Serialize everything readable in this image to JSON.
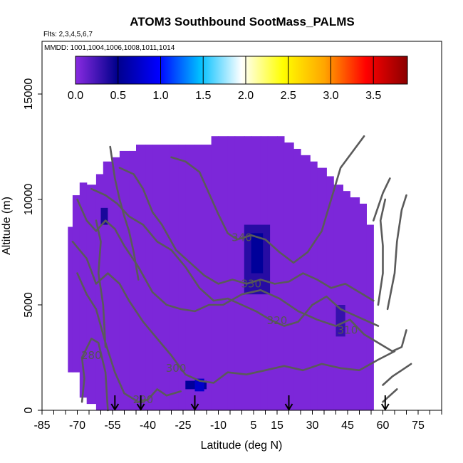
{
  "chart_data": {
    "type": "heatmap",
    "title": "ATOM3 Southbound SootMass_PALMS",
    "subtitle_flights": "Flts: 2,3,4,5,6,7",
    "subtitle_dates": "MMDD: 1001,1004,1006,1008,1011,1014",
    "xlabel": "Latitude (deg N)",
    "ylabel": "Altitude (m)",
    "xlim": [
      -85,
      85
    ],
    "ylim": [
      0,
      17500
    ],
    "x_ticks": [
      -85,
      -70,
      -55,
      -40,
      -25,
      -10,
      5,
      15,
      30,
      45,
      60,
      75
    ],
    "y_ticks": [
      0,
      5000,
      10000,
      15000
    ],
    "colorbar": {
      "min": 0.0,
      "max": 3.9,
      "ticks": [
        "0.0",
        "0.5",
        "1.0",
        "1.5",
        "2.0",
        "2.5",
        "3.0",
        "3.5"
      ],
      "colors": [
        "#8a2be2",
        "#00008b",
        "#0000ff",
        "#00bfff",
        "#ffffff",
        "#ffff00",
        "#ffa500",
        "#ff0000",
        "#8b0000"
      ]
    },
    "background_value": 0.05,
    "coverage": [
      [
        -70,
        400,
        2000
      ],
      [
        -69,
        450,
        2900
      ],
      [
        -68,
        500,
        2800
      ],
      [
        -67,
        550,
        3000
      ],
      [
        -66,
        600,
        1000
      ],
      [
        -65,
        650,
        1100
      ],
      [
        -64,
        700,
        3000
      ],
      [
        -63,
        800,
        3000
      ],
      [
        -62,
        900,
        10000
      ],
      [
        -61,
        1000,
        9000
      ],
      [
        -60,
        1100,
        9000
      ],
      [
        -59,
        1200,
        8000
      ],
      [
        -58,
        1300,
        7000
      ],
      [
        -57,
        1400,
        5000
      ],
      [
        -56,
        1500,
        4000
      ],
      [
        -55,
        1600,
        3000
      ],
      [
        -54,
        1700,
        2000
      ],
      [
        -53,
        1900,
        1800
      ],
      [
        -52,
        2100,
        1600
      ],
      [
        -51,
        2300,
        1400
      ],
      [
        -50,
        2500,
        1300
      ],
      [
        -49,
        2700,
        1200
      ],
      [
        -48,
        3000,
        1100
      ],
      [
        -47,
        3300,
        1000
      ],
      [
        -46,
        3600,
        900
      ],
      [
        -45,
        3900,
        800
      ],
      [
        -44,
        4200,
        700
      ],
      [
        -43,
        4500,
        600
      ],
      [
        -42,
        4800,
        500
      ],
      [
        -41,
        5100,
        400
      ],
      [
        -40,
        5400,
        300
      ]
    ],
    "hotspots": [
      {
        "lat_range": [
          -60,
          -57
        ],
        "alt_range": [
          8800,
          9600
        ],
        "value": 0.4
      },
      {
        "lat_range": [
          -24,
          -15
        ],
        "alt_range": [
          1000,
          1400
        ],
        "value": 0.55
      },
      {
        "lat_range": [
          -20,
          -16
        ],
        "alt_range": [
          900,
          1500
        ],
        "value": 0.75
      },
      {
        "lat_range": [
          1,
          12
        ],
        "alt_range": [
          5500,
          8800
        ],
        "value": 0.35
      },
      {
        "lat_range": [
          4,
          9
        ],
        "alt_range": [
          6500,
          8400
        ],
        "value": 0.55
      },
      {
        "lat_range": [
          40,
          44
        ],
        "alt_range": [
          3500,
          5000
        ],
        "value": 0.3
      }
    ],
    "contours": [
      {
        "label": "280",
        "label_at": [
          -64,
          2600
        ],
        "points": [
          [
            -68,
            400
          ],
          [
            -67,
            1500
          ],
          [
            -68,
            2500
          ],
          [
            -64,
            3400
          ],
          [
            -61,
            3200
          ],
          [
            -58,
            1800
          ],
          [
            -57,
            0
          ]
        ]
      },
      {
        "label": "290",
        "label_at": [
          -42,
          500
        ],
        "points": [
          [
            -70,
            6500
          ],
          [
            -66,
            5500
          ],
          [
            -62,
            4800
          ],
          [
            -58,
            3200
          ],
          [
            -54,
            1800
          ],
          [
            -50,
            800
          ],
          [
            -44,
            400
          ],
          [
            -40,
            500
          ],
          [
            -36,
            1000
          ],
          [
            -32,
            700
          ],
          [
            -26,
            900
          ]
        ]
      },
      {
        "label": "300",
        "label_at": [
          -28,
          2000
        ],
        "points": [
          [
            -72,
            8000
          ],
          [
            -66,
            7200
          ],
          [
            -62,
            6000
          ],
          [
            -57,
            6500
          ],
          [
            -52,
            6000
          ],
          [
            -48,
            5200
          ],
          [
            -42,
            4200
          ],
          [
            -36,
            3400
          ],
          [
            -30,
            2600
          ],
          [
            -24,
            1700
          ],
          [
            -18,
            1400
          ],
          [
            -12,
            1300
          ],
          [
            -6,
            1800
          ],
          [
            2,
            1700
          ],
          [
            10,
            1900
          ],
          [
            18,
            2100
          ],
          [
            26,
            1900
          ],
          [
            34,
            2200
          ],
          [
            42,
            2000
          ],
          [
            50,
            1900
          ],
          [
            58,
            2400
          ],
          [
            65,
            2800
          ]
        ]
      },
      {
        "label": "310",
        "label_at": [
          45,
          3800
        ],
        "points": [
          [
            -70,
            10000
          ],
          [
            -66,
            9000
          ],
          [
            -62,
            8500
          ],
          [
            -58,
            9000
          ],
          [
            -54,
            8600
          ],
          [
            -50,
            7800
          ],
          [
            -44,
            6800
          ],
          [
            -38,
            5600
          ],
          [
            -32,
            5000
          ],
          [
            -26,
            4800
          ],
          [
            -20,
            4700
          ],
          [
            -14,
            5000
          ],
          [
            -8,
            5000
          ],
          [
            0,
            5500
          ],
          [
            8,
            5700
          ],
          [
            16,
            5300
          ],
          [
            24,
            4700
          ],
          [
            32,
            4300
          ],
          [
            40,
            4000
          ],
          [
            46,
            4300
          ],
          [
            52,
            3600
          ],
          [
            58,
            3200
          ],
          [
            64,
            2800
          ],
          [
            68,
            3000
          ],
          [
            70,
            3800
          ]
        ]
      },
      {
        "label": "320",
        "label_at": [
          15,
          4250
        ],
        "points": [
          [
            -64,
            10500
          ],
          [
            -58,
            10200
          ],
          [
            -53,
            9800
          ],
          [
            -48,
            9200
          ],
          [
            -42,
            8800
          ],
          [
            -36,
            8000
          ],
          [
            -30,
            7600
          ],
          [
            -24,
            6800
          ],
          [
            -18,
            5800
          ],
          [
            -12,
            5200
          ],
          [
            -6,
            5300
          ],
          [
            0,
            5000
          ],
          [
            6,
            4700
          ],
          [
            12,
            4300
          ],
          [
            18,
            4000
          ],
          [
            24,
            4200
          ],
          [
            30,
            5000
          ],
          [
            36,
            5400
          ],
          [
            42,
            4800
          ],
          [
            48,
            4500
          ],
          [
            54,
            4200
          ],
          [
            58,
            4000
          ]
        ]
      },
      {
        "label": "330",
        "label_at": [
          4,
          6000
        ],
        "points": [
          [
            -52,
            11500
          ],
          [
            -46,
            11200
          ],
          [
            -42,
            10500
          ],
          [
            -38,
            9400
          ],
          [
            -34,
            8800
          ],
          [
            -28,
            7600
          ],
          [
            -22,
            7000
          ],
          [
            -16,
            6400
          ],
          [
            -10,
            6000
          ],
          [
            -4,
            6200
          ],
          [
            2,
            6000
          ],
          [
            8,
            6200
          ],
          [
            14,
            6000
          ],
          [
            20,
            6100
          ],
          [
            26,
            6500
          ],
          [
            32,
            6200
          ],
          [
            38,
            5800
          ],
          [
            44,
            6000
          ],
          [
            50,
            5600
          ],
          [
            56,
            5200
          ]
        ]
      },
      {
        "label": "340",
        "label_at": [
          0,
          8200
        ],
        "points": [
          [
            -30,
            12000
          ],
          [
            -24,
            11800
          ],
          [
            -18,
            11300
          ],
          [
            -14,
            10300
          ],
          [
            -10,
            9300
          ],
          [
            -6,
            8400
          ],
          [
            -2,
            8100
          ],
          [
            4,
            8300
          ],
          [
            10,
            8100
          ],
          [
            16,
            7500
          ],
          [
            22,
            7000
          ],
          [
            28,
            7500
          ],
          [
            34,
            8500
          ],
          [
            38,
            10000
          ],
          [
            42,
            11500
          ],
          [
            48,
            12400
          ],
          [
            52,
            13000
          ]
        ]
      },
      {
        "label": "",
        "label_at": null,
        "points": [
          [
            -56,
            12500
          ],
          [
            -54,
            11000
          ],
          [
            -52,
            10000
          ],
          [
            -50,
            9200
          ],
          [
            -48,
            8500
          ],
          [
            -46,
            7500
          ],
          [
            -44,
            6200
          ]
        ]
      },
      {
        "label": "",
        "label_at": null,
        "points": [
          [
            56,
            9000
          ],
          [
            60,
            10300
          ],
          [
            63,
            11000
          ]
        ]
      },
      {
        "label": "",
        "label_at": null,
        "points": [
          [
            58,
            5000
          ],
          [
            60,
            6500
          ],
          [
            60,
            7800
          ],
          [
            59,
            9000
          ],
          [
            61,
            10000
          ]
        ]
      },
      {
        "label": "",
        "label_at": null,
        "points": [
          [
            62,
            4800
          ],
          [
            65,
            6500
          ],
          [
            66,
            8000
          ],
          [
            68,
            9500
          ],
          [
            70,
            10200
          ]
        ]
      },
      {
        "label": "",
        "label_at": null,
        "points": [
          [
            60,
            1200
          ],
          [
            64,
            1600
          ],
          [
            68,
            1900
          ],
          [
            72,
            2200
          ]
        ]
      },
      {
        "label": "",
        "label_at": null,
        "points": [
          [
            60,
            400
          ],
          [
            63,
            700
          ],
          [
            66,
            1000
          ]
        ]
      },
      {
        "label": "",
        "label_at": null,
        "points": [
          [
            -62,
            9000
          ],
          [
            -60,
            8000
          ],
          [
            -61,
            6500
          ],
          [
            -59,
            5000
          ],
          [
            -58,
            3000
          ]
        ]
      }
    ],
    "arrows_lat": [
      -54,
      -43,
      -20,
      20,
      61
    ],
    "grid": false,
    "legend_position": "top"
  }
}
